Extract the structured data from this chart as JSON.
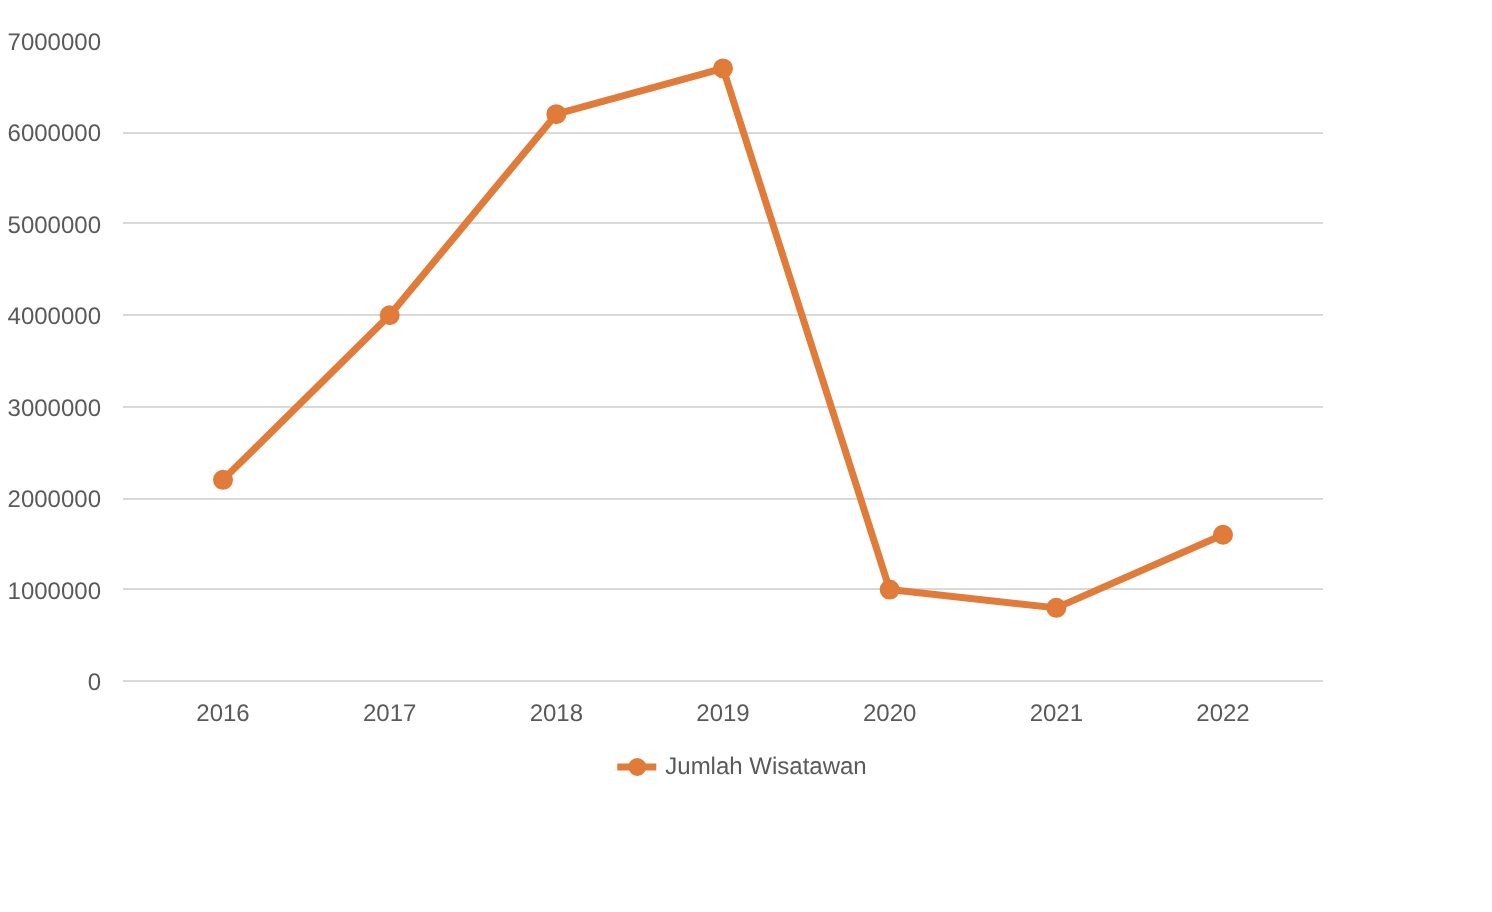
{
  "chart_data": {
    "type": "line",
    "categories": [
      "2016",
      "2017",
      "2018",
      "2019",
      "2020",
      "2021",
      "2022"
    ],
    "series": [
      {
        "name": "Jumlah Wisatawan",
        "color": "#e07b39",
        "values": [
          2200000,
          4000000,
          6200000,
          6700000,
          1000000,
          800000,
          1600000
        ]
      }
    ],
    "ylim": [
      0,
      7000000
    ],
    "yticks": [
      0,
      1000000,
      2000000,
      3000000,
      4000000,
      5000000,
      6000000,
      7000000
    ],
    "grid": "y",
    "legend": "bottom",
    "marker": "circle",
    "line_style": "solid"
  }
}
